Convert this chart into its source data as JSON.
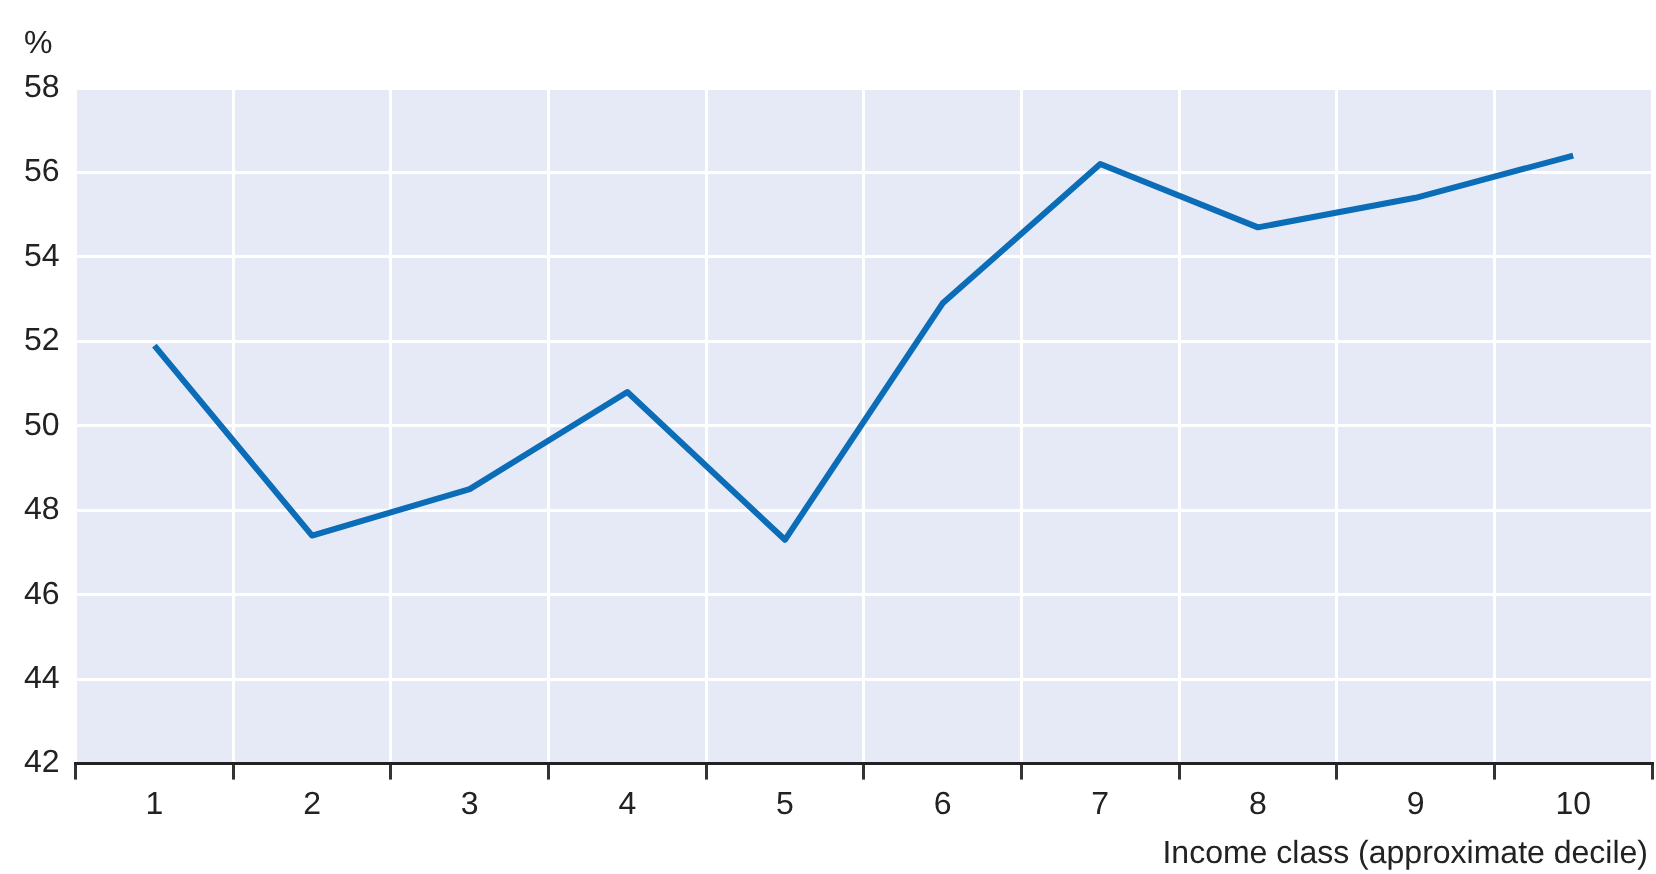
{
  "chart_data": {
    "type": "line",
    "ylabel": "%",
    "xlabel": "Income class (approximate decile)",
    "categories": [
      "1",
      "2",
      "3",
      "4",
      "5",
      "6",
      "7",
      "8",
      "9",
      "10"
    ],
    "series": [
      {
        "color": "#0b6db7",
        "values": [
          51.9,
          47.4,
          48.5,
          50.8,
          47.3,
          52.9,
          56.2,
          54.7,
          55.4,
          56.4
        ]
      }
    ],
    "ylim": [
      42,
      58
    ],
    "yticks": [
      42,
      44,
      46,
      48,
      50,
      52,
      54,
      56,
      58
    ],
    "grid": true,
    "legend": false,
    "marker": "none",
    "line_style": "solid"
  }
}
